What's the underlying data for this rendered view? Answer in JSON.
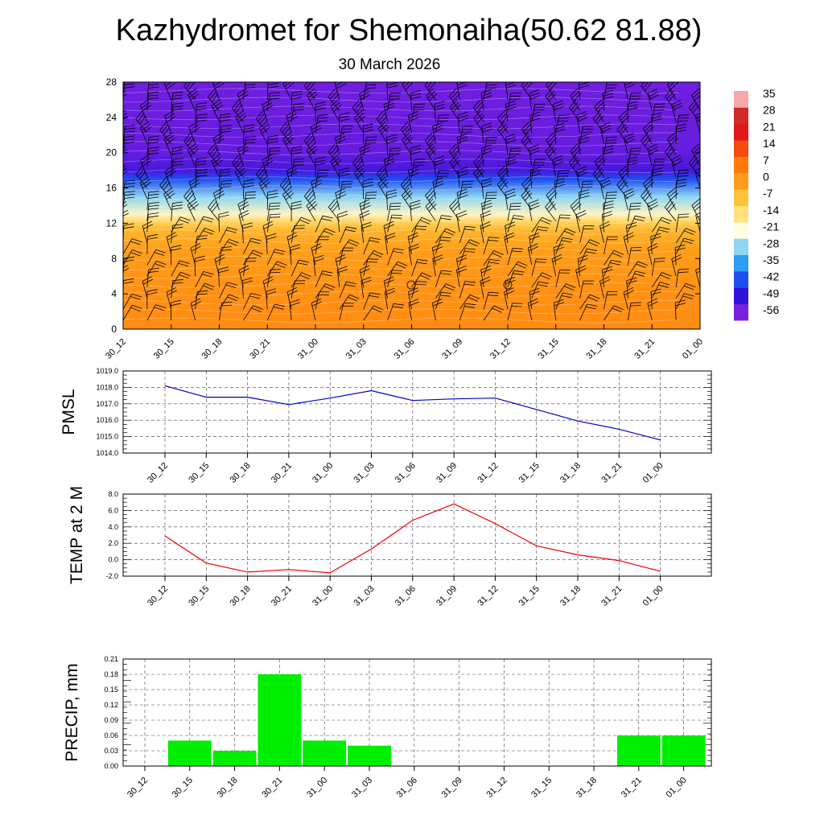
{
  "header": {
    "title": "Kazhydromet for Shemonaiha(50.62 81.88)",
    "subtitle": "30 March 2026"
  },
  "chart_data": [
    {
      "type": "heatmap",
      "name": "vertical-cross-section",
      "description": "Temperature cross-section with wind barbs",
      "x_categories": [
        "30_12",
        "30_15",
        "30_18",
        "30_21",
        "31_00",
        "31_03",
        "31_06",
        "31_09",
        "31_12",
        "31_15",
        "31_18",
        "31_21",
        "01_00"
      ],
      "y_ticks": [
        "0",
        "4",
        "8",
        "12",
        "16",
        "20",
        "24",
        "28"
      ],
      "ylim": [
        0,
        28
      ],
      "colorbar": {
        "labels": [
          "35",
          "28",
          "21",
          "14",
          "7",
          "0",
          "-7",
          "-14",
          "-21",
          "-28",
          "-35",
          "-42",
          "-49",
          "-56"
        ],
        "range": [
          -60,
          38
        ],
        "colors": [
          "#7a1fe0",
          "#2d14d8",
          "#1f4ef0",
          "#2e9cf0",
          "#8fd6f2",
          "#fffce0",
          "#ffe27a",
          "#ffc33a",
          "#ff9d1a",
          "#ff7a0a",
          "#f54a10",
          "#e01818",
          "#d02a2a",
          "#f4a8a8"
        ]
      },
      "layer_temperatures": [
        {
          "height": 0,
          "value": 4
        },
        {
          "height": 3,
          "value": 3
        },
        {
          "height": 6,
          "value": 2
        },
        {
          "height": 9,
          "value": 0
        },
        {
          "height": 11,
          "value": -4
        },
        {
          "height": 12,
          "value": -10
        },
        {
          "height": 13,
          "value": -20
        },
        {
          "height": 15,
          "value": -30
        },
        {
          "height": 17,
          "value": -45
        },
        {
          "height": 18,
          "value": -55
        },
        {
          "height": 20,
          "value": -58
        },
        {
          "height": 28,
          "value": -59
        }
      ]
    },
    {
      "type": "line",
      "name": "pmsl",
      "ylabel": "PMSL",
      "categories": [
        "30_12",
        "30_15",
        "30_18",
        "30_21",
        "31_00",
        "31_03",
        "31_06",
        "31_09",
        "31_12",
        "31_15",
        "31_18",
        "31_21",
        "01_00"
      ],
      "y_ticks": [
        "1014.0",
        "1015.0",
        "1016.0",
        "1017.0",
        "1018.0",
        "1019.0"
      ],
      "ylim": [
        1014,
        1019
      ],
      "color": "#0000cc",
      "values": [
        1018.1,
        1017.4,
        1017.4,
        1016.95,
        1017.35,
        1017.8,
        1017.2,
        1017.3,
        1017.35,
        1016.65,
        1015.95,
        1015.45,
        1014.8
      ]
    },
    {
      "type": "line",
      "name": "temp2m",
      "ylabel": "TEMP at 2 M",
      "categories": [
        "30_12",
        "30_15",
        "30_18",
        "30_21",
        "31_00",
        "31_03",
        "31_06",
        "31_09",
        "31_12",
        "31_15",
        "31_18",
        "31_21",
        "01_00"
      ],
      "y_ticks": [
        "-2.0",
        "0.0",
        "2.0",
        "4.0",
        "6.0",
        "8.0"
      ],
      "ylim": [
        -2,
        8
      ],
      "color": "#ee0000",
      "values": [
        2.9,
        -0.4,
        -1.5,
        -1.2,
        -1.6,
        1.3,
        4.8,
        6.8,
        4.4,
        1.7,
        0.6,
        -0.1,
        -1.4
      ]
    },
    {
      "type": "bar",
      "name": "precip",
      "ylabel": "PRECIP, mm",
      "categories": [
        "30_12",
        "30_15",
        "30_18",
        "30_21",
        "31_00",
        "31_03",
        "31_06",
        "31_09",
        "31_12",
        "31_15",
        "31_18",
        "31_21",
        "01_00"
      ],
      "y_ticks": [
        "0.00",
        "0.03",
        "0.06",
        "0.09",
        "0.12",
        "0.15",
        "0.18",
        "0.21"
      ],
      "ylim": [
        0,
        0.21
      ],
      "color": "#00ee00",
      "values": [
        0,
        0.05,
        0.03,
        0.18,
        0.05,
        0.04,
        0,
        0,
        0,
        0,
        0,
        0.06,
        0.06
      ]
    }
  ]
}
